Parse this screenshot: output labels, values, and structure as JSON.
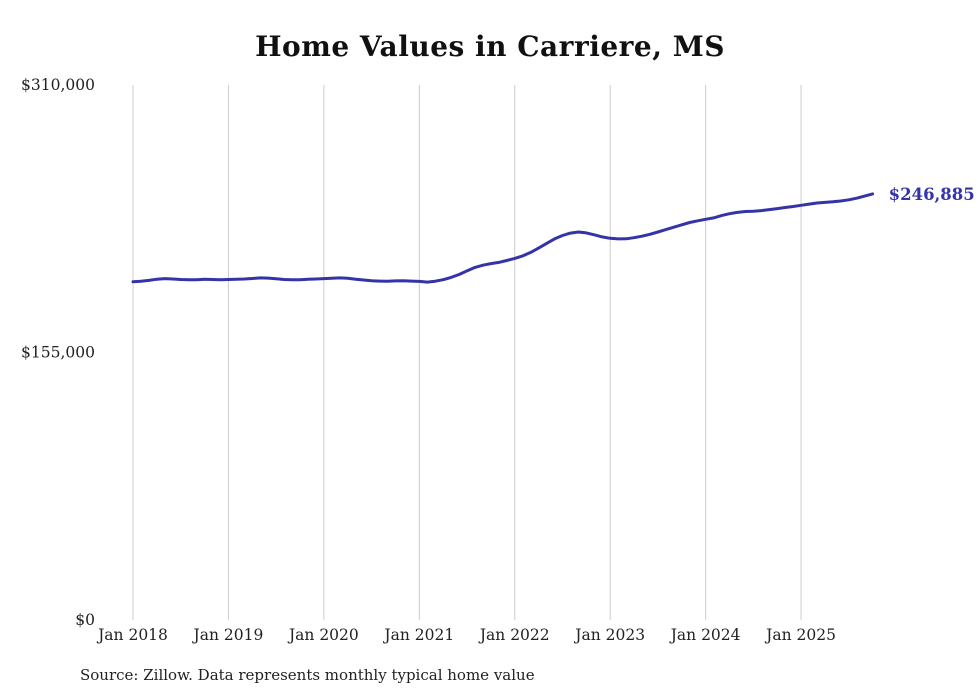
{
  "chart_data": {
    "type": "line",
    "title": "Home Values in Carriere, MS",
    "source": "Source: Zillow. Data represents monthly typical home value",
    "ylim": [
      0,
      310000
    ],
    "grid": "vertical-only",
    "grid_color": "#cccccc",
    "line_color": "#3533a8",
    "end_label": "$246,885",
    "end_value": 246885,
    "frequency": "monthly",
    "x_start": "Jan 2018",
    "x_end": "Oct 2025",
    "yticks": [
      {
        "value": 0,
        "label": "$0"
      },
      {
        "value": 155000,
        "label": "$155,000"
      },
      {
        "value": 310000,
        "label": "$310,000"
      }
    ],
    "xticks": [
      {
        "index": 0,
        "label": "Jan 2018"
      },
      {
        "index": 12,
        "label": "Jan 2019"
      },
      {
        "index": 24,
        "label": "Jan 2020"
      },
      {
        "index": 36,
        "label": "Jan 2021"
      },
      {
        "index": 48,
        "label": "Jan 2022"
      },
      {
        "index": 60,
        "label": "Jan 2023"
      },
      {
        "index": 72,
        "label": "Jan 2024"
      },
      {
        "index": 84,
        "label": "Jan 2025"
      }
    ],
    "series": [
      {
        "name": "Typical home value",
        "values": [
          196000,
          196300,
          196800,
          197500,
          197800,
          197600,
          197300,
          197100,
          197200,
          197400,
          197300,
          197200,
          197300,
          197500,
          197600,
          197900,
          198200,
          198100,
          197700,
          197300,
          197100,
          197200,
          197400,
          197600,
          197800,
          198000,
          198200,
          198000,
          197500,
          197000,
          196600,
          196400,
          196300,
          196500,
          196600,
          196400,
          196200,
          195800,
          196300,
          197200,
          198500,
          200200,
          202300,
          204300,
          205600,
          206500,
          207200,
          208300,
          209500,
          211000,
          213000,
          215500,
          218200,
          220800,
          222800,
          224200,
          224800,
          224300,
          223200,
          222000,
          221200,
          220800,
          220900,
          221500,
          222400,
          223500,
          224800,
          226200,
          227600,
          229000,
          230300,
          231300,
          232200,
          233000,
          234300,
          235400,
          236200,
          236700,
          236900,
          237200,
          237800,
          238400,
          239000,
          239600,
          240300,
          241000,
          241600,
          242000,
          242300,
          242800,
          243500,
          244400,
          245600,
          246885
        ]
      }
    ]
  }
}
